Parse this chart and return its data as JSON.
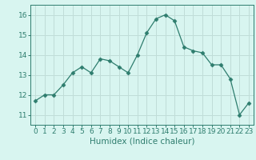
{
  "x": [
    0,
    1,
    2,
    3,
    4,
    5,
    6,
    7,
    8,
    9,
    10,
    11,
    12,
    13,
    14,
    15,
    16,
    17,
    18,
    19,
    20,
    21,
    22,
    23
  ],
  "y": [
    11.7,
    12.0,
    12.0,
    12.5,
    13.1,
    13.4,
    13.1,
    13.8,
    13.7,
    13.4,
    13.1,
    14.0,
    15.1,
    15.8,
    16.0,
    15.7,
    14.4,
    14.2,
    14.1,
    13.5,
    13.5,
    12.8,
    11.0,
    11.6
  ],
  "line_color": "#2e7d6e",
  "marker": "D",
  "marker_size": 2.5,
  "bg_color": "#d8f5f0",
  "grid_color": "#c0ddd8",
  "xlabel": "Humidex (Indice chaleur)",
  "ylim": [
    10.5,
    16.5
  ],
  "xlim": [
    -0.5,
    23.5
  ],
  "yticks": [
    11,
    12,
    13,
    14,
    15,
    16
  ],
  "xticks": [
    0,
    1,
    2,
    3,
    4,
    5,
    6,
    7,
    8,
    9,
    10,
    11,
    12,
    13,
    14,
    15,
    16,
    17,
    18,
    19,
    20,
    21,
    22,
    23
  ],
  "tick_color": "#2e7d6e",
  "label_fontsize": 7.5,
  "tick_fontsize": 6.5
}
